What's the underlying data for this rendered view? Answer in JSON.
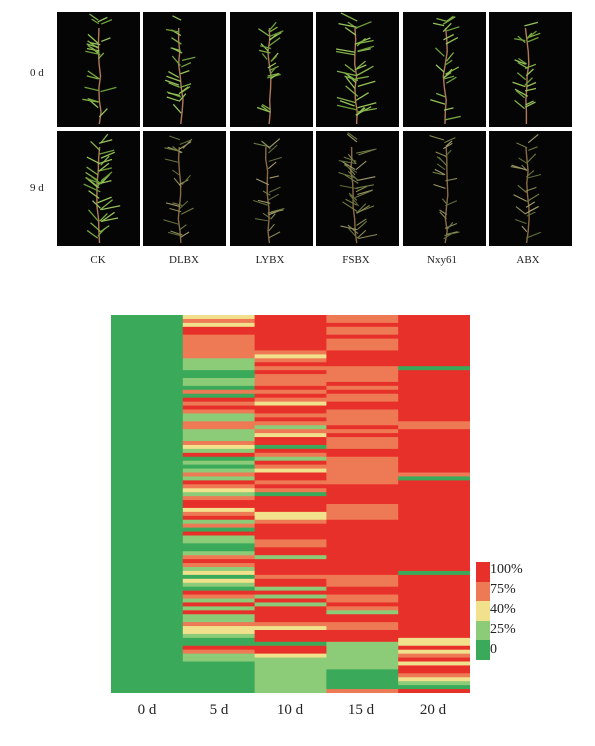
{
  "photo_panel": {
    "rows": [
      "0 d",
      "9 d"
    ],
    "columns": [
      "CK",
      "DLBX",
      "LYBX",
      "FSBX",
      "Nxy61",
      "ABX"
    ]
  },
  "heatmap": {
    "x_labels": [
      "0 d",
      "5 d",
      "10 d",
      "15 d",
      "20 d"
    ],
    "legend": [
      {
        "label": "100%",
        "color": "#e8302a"
      },
      {
        "label": "75%",
        "color": "#ee7a55"
      },
      {
        "label": "40%",
        "color": "#f1e08c"
      },
      {
        "label": "25%",
        "color": "#8ccb77"
      },
      {
        "label": "0",
        "color": "#3aaa5a"
      }
    ]
  }
}
